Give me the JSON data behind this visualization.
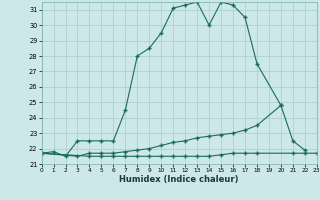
{
  "xlabel": "Humidex (Indice chaleur)",
  "bg_color": "#cce8e8",
  "line_color": "#1a6b5a",
  "grid_color": "#aacccc",
  "series1_x": [
    0,
    1,
    2,
    3,
    4,
    5,
    6,
    7,
    8,
    9,
    10,
    11,
    12,
    13,
    14,
    15,
    16,
    17,
    18,
    20
  ],
  "series1_y": [
    21.7,
    21.8,
    21.5,
    22.5,
    22.5,
    22.5,
    22.5,
    24.5,
    28.0,
    28.5,
    29.5,
    31.1,
    31.3,
    31.5,
    30.0,
    31.5,
    31.3,
    30.5,
    27.5,
    24.8
  ],
  "series2_x": [
    0,
    3,
    4,
    5,
    6,
    7,
    8,
    9,
    10,
    11,
    12,
    13,
    14,
    15,
    16,
    17,
    18,
    20,
    21,
    22
  ],
  "series2_y": [
    21.7,
    21.5,
    21.7,
    21.7,
    21.7,
    21.8,
    21.9,
    22.0,
    22.2,
    22.4,
    22.5,
    22.7,
    22.8,
    22.9,
    23.0,
    23.2,
    23.5,
    24.8,
    22.5,
    21.9
  ],
  "series3_x": [
    0,
    4,
    5,
    6,
    7,
    8,
    9,
    10,
    11,
    12,
    13,
    14,
    15,
    16,
    17,
    18,
    21,
    22,
    23
  ],
  "series3_y": [
    21.7,
    21.5,
    21.5,
    21.5,
    21.5,
    21.5,
    21.5,
    21.5,
    21.5,
    21.5,
    21.5,
    21.5,
    21.6,
    21.7,
    21.7,
    21.7,
    21.7,
    21.7,
    21.7
  ],
  "ylim": [
    21.0,
    31.5
  ],
  "xlim": [
    0,
    23
  ],
  "yticks": [
    21,
    22,
    23,
    24,
    25,
    26,
    27,
    28,
    29,
    30,
    31
  ],
  "xticks": [
    0,
    1,
    2,
    3,
    4,
    5,
    6,
    7,
    8,
    9,
    10,
    11,
    12,
    13,
    14,
    15,
    16,
    17,
    18,
    19,
    20,
    21,
    22,
    23
  ],
  "xtick_labels": [
    "0",
    "1",
    "2",
    "3",
    "4",
    "5",
    "6",
    "7",
    "8",
    "9",
    "10",
    "11",
    "12",
    "13",
    "14",
    "15",
    "16",
    "17",
    "18",
    "19",
    "20",
    "21",
    "22",
    "23"
  ]
}
